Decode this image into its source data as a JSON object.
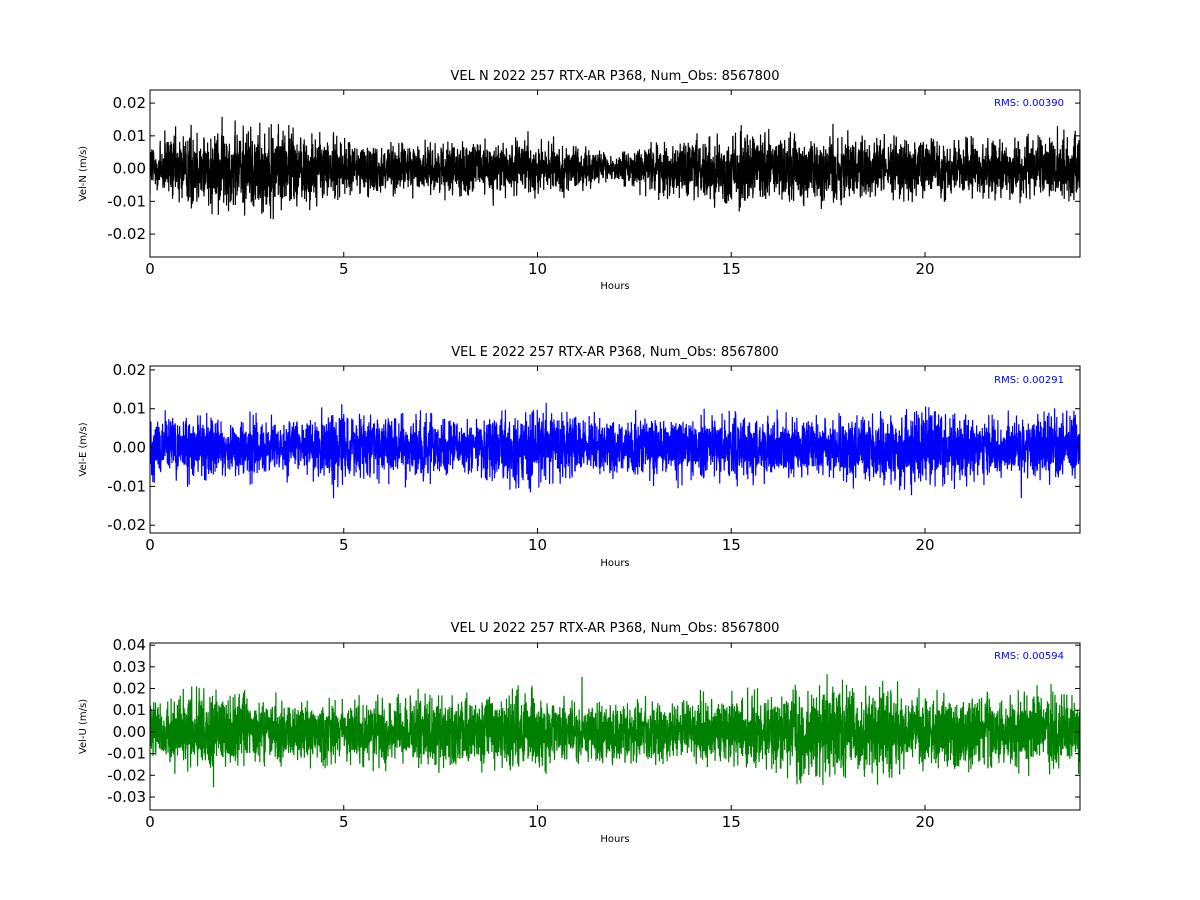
{
  "chart_data": [
    {
      "type": "line",
      "title": "VEL N 2022 257 RTX-AR  P368, Num_Obs: 8567800",
      "xlabel": "Hours",
      "ylabel": "Vel-N (m/s)",
      "xlim": [
        0,
        24
      ],
      "ylim": [
        -0.027,
        0.024
      ],
      "xticks": [
        "0",
        "5",
        "10",
        "15",
        "20"
      ],
      "yticks": [
        "-0.02",
        "-0.01",
        "0.00",
        "0.01",
        "0.02"
      ],
      "ytick_values": [
        -0.02,
        -0.01,
        0.0,
        0.01,
        0.02
      ],
      "color": "#000000",
      "rms_text": "RMS:  0.00390",
      "noise_profile": {
        "hours": [
          0,
          1,
          2,
          3,
          4,
          5,
          6,
          7,
          8,
          9,
          10,
          11,
          12,
          13,
          14,
          15,
          16,
          17,
          18,
          19,
          20,
          21,
          22,
          23,
          24
        ],
        "amplitude": [
          0.013,
          0.017,
          0.018,
          0.019,
          0.016,
          0.012,
          0.011,
          0.01,
          0.011,
          0.012,
          0.011,
          0.009,
          0.006,
          0.011,
          0.012,
          0.017,
          0.014,
          0.016,
          0.015,
          0.013,
          0.013,
          0.012,
          0.012,
          0.013,
          0.014
        ]
      }
    },
    {
      "type": "line",
      "title": "VEL E 2022 257 RTX-AR  P368, Num_Obs: 8567800",
      "xlabel": "Hours",
      "ylabel": "Vel-E (m/s)",
      "xlim": [
        0,
        24
      ],
      "ylim": [
        -0.022,
        0.021
      ],
      "xticks": [
        "0",
        "5",
        "10",
        "15",
        "20"
      ],
      "yticks": [
        "-0.02",
        "-0.01",
        "0.00",
        "0.01",
        "0.02"
      ],
      "ytick_values": [
        -0.02,
        -0.01,
        0.0,
        0.01,
        0.02
      ],
      "color": "#0000ff",
      "rms_text": "RMS:  0.00291",
      "noise_profile": {
        "hours": [
          0,
          1,
          2,
          3,
          4,
          5,
          6,
          7,
          8,
          9,
          10,
          11,
          12,
          13,
          14,
          15,
          16,
          17,
          18,
          19,
          20,
          21,
          22,
          23,
          24
        ],
        "amplitude": [
          0.011,
          0.012,
          0.011,
          0.011,
          0.01,
          0.012,
          0.011,
          0.011,
          0.01,
          0.012,
          0.014,
          0.011,
          0.01,
          0.011,
          0.011,
          0.012,
          0.011,
          0.011,
          0.011,
          0.012,
          0.016,
          0.012,
          0.011,
          0.011,
          0.011
        ]
      }
    },
    {
      "type": "line",
      "title": "VEL U 2022 257 RTX-AR  P368, Num_Obs: 8567800",
      "xlabel": "Hours",
      "ylabel": "Vel-U (m/s)",
      "xlim": [
        0,
        24
      ],
      "ylim": [
        -0.036,
        0.041
      ],
      "xticks": [
        "0",
        "5",
        "10",
        "15",
        "20"
      ],
      "yticks": [
        "-0.03",
        "-0.02",
        "-0.01",
        "0.00",
        "0.01",
        "0.02",
        "0.03",
        "0.04"
      ],
      "ytick_values": [
        -0.03,
        -0.02,
        -0.01,
        0.0,
        0.01,
        0.02,
        0.03,
        0.04
      ],
      "color": "#008000",
      "rms_text": "RMS:  0.00594",
      "noise_profile": {
        "hours": [
          0,
          1,
          2,
          3,
          4,
          5,
          6,
          7,
          8,
          9,
          10,
          11,
          12,
          13,
          14,
          15,
          16,
          17,
          18,
          19,
          20,
          21,
          22,
          23,
          24
        ],
        "amplitude": [
          0.02,
          0.025,
          0.024,
          0.02,
          0.02,
          0.019,
          0.02,
          0.022,
          0.023,
          0.024,
          0.025,
          0.02,
          0.019,
          0.02,
          0.02,
          0.021,
          0.024,
          0.028,
          0.029,
          0.026,
          0.025,
          0.025,
          0.024,
          0.026,
          0.022
        ]
      }
    }
  ]
}
